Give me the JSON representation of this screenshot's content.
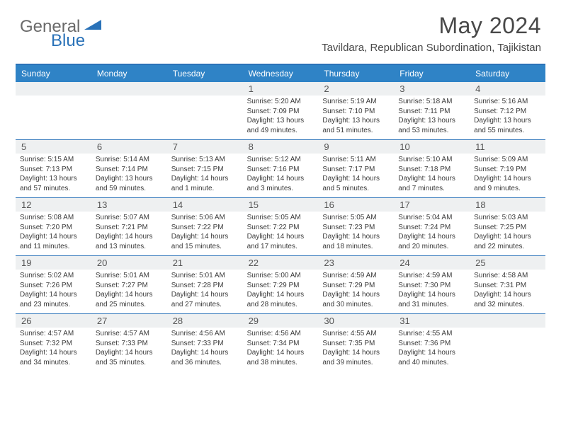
{
  "logo": {
    "text1": "General",
    "text2": "Blue"
  },
  "title": "May 2024",
  "location": "Tavildara, Republican Subordination, Tajikistan",
  "colors": {
    "header_bg": "#2f83c6",
    "border": "#2a72b8",
    "daynum_bg": "#eef0f1",
    "text": "#3a3a3a",
    "title_text": "#484848"
  },
  "day_headers": [
    "Sunday",
    "Monday",
    "Tuesday",
    "Wednesday",
    "Thursday",
    "Friday",
    "Saturday"
  ],
  "weeks": [
    [
      {
        "n": "",
        "sr": "",
        "ss": "",
        "dl": ""
      },
      {
        "n": "",
        "sr": "",
        "ss": "",
        "dl": ""
      },
      {
        "n": "",
        "sr": "",
        "ss": "",
        "dl": ""
      },
      {
        "n": "1",
        "sr": "5:20 AM",
        "ss": "7:09 PM",
        "dl": "13 hours and 49 minutes."
      },
      {
        "n": "2",
        "sr": "5:19 AM",
        "ss": "7:10 PM",
        "dl": "13 hours and 51 minutes."
      },
      {
        "n": "3",
        "sr": "5:18 AM",
        "ss": "7:11 PM",
        "dl": "13 hours and 53 minutes."
      },
      {
        "n": "4",
        "sr": "5:16 AM",
        "ss": "7:12 PM",
        "dl": "13 hours and 55 minutes."
      }
    ],
    [
      {
        "n": "5",
        "sr": "5:15 AM",
        "ss": "7:13 PM",
        "dl": "13 hours and 57 minutes."
      },
      {
        "n": "6",
        "sr": "5:14 AM",
        "ss": "7:14 PM",
        "dl": "13 hours and 59 minutes."
      },
      {
        "n": "7",
        "sr": "5:13 AM",
        "ss": "7:15 PM",
        "dl": "14 hours and 1 minute."
      },
      {
        "n": "8",
        "sr": "5:12 AM",
        "ss": "7:16 PM",
        "dl": "14 hours and 3 minutes."
      },
      {
        "n": "9",
        "sr": "5:11 AM",
        "ss": "7:17 PM",
        "dl": "14 hours and 5 minutes."
      },
      {
        "n": "10",
        "sr": "5:10 AM",
        "ss": "7:18 PM",
        "dl": "14 hours and 7 minutes."
      },
      {
        "n": "11",
        "sr": "5:09 AM",
        "ss": "7:19 PM",
        "dl": "14 hours and 9 minutes."
      }
    ],
    [
      {
        "n": "12",
        "sr": "5:08 AM",
        "ss": "7:20 PM",
        "dl": "14 hours and 11 minutes."
      },
      {
        "n": "13",
        "sr": "5:07 AM",
        "ss": "7:21 PM",
        "dl": "14 hours and 13 minutes."
      },
      {
        "n": "14",
        "sr": "5:06 AM",
        "ss": "7:22 PM",
        "dl": "14 hours and 15 minutes."
      },
      {
        "n": "15",
        "sr": "5:05 AM",
        "ss": "7:22 PM",
        "dl": "14 hours and 17 minutes."
      },
      {
        "n": "16",
        "sr": "5:05 AM",
        "ss": "7:23 PM",
        "dl": "14 hours and 18 minutes."
      },
      {
        "n": "17",
        "sr": "5:04 AM",
        "ss": "7:24 PM",
        "dl": "14 hours and 20 minutes."
      },
      {
        "n": "18",
        "sr": "5:03 AM",
        "ss": "7:25 PM",
        "dl": "14 hours and 22 minutes."
      }
    ],
    [
      {
        "n": "19",
        "sr": "5:02 AM",
        "ss": "7:26 PM",
        "dl": "14 hours and 23 minutes."
      },
      {
        "n": "20",
        "sr": "5:01 AM",
        "ss": "7:27 PM",
        "dl": "14 hours and 25 minutes."
      },
      {
        "n": "21",
        "sr": "5:01 AM",
        "ss": "7:28 PM",
        "dl": "14 hours and 27 minutes."
      },
      {
        "n": "22",
        "sr": "5:00 AM",
        "ss": "7:29 PM",
        "dl": "14 hours and 28 minutes."
      },
      {
        "n": "23",
        "sr": "4:59 AM",
        "ss": "7:29 PM",
        "dl": "14 hours and 30 minutes."
      },
      {
        "n": "24",
        "sr": "4:59 AM",
        "ss": "7:30 PM",
        "dl": "14 hours and 31 minutes."
      },
      {
        "n": "25",
        "sr": "4:58 AM",
        "ss": "7:31 PM",
        "dl": "14 hours and 32 minutes."
      }
    ],
    [
      {
        "n": "26",
        "sr": "4:57 AM",
        "ss": "7:32 PM",
        "dl": "14 hours and 34 minutes."
      },
      {
        "n": "27",
        "sr": "4:57 AM",
        "ss": "7:33 PM",
        "dl": "14 hours and 35 minutes."
      },
      {
        "n": "28",
        "sr": "4:56 AM",
        "ss": "7:33 PM",
        "dl": "14 hours and 36 minutes."
      },
      {
        "n": "29",
        "sr": "4:56 AM",
        "ss": "7:34 PM",
        "dl": "14 hours and 38 minutes."
      },
      {
        "n": "30",
        "sr": "4:55 AM",
        "ss": "7:35 PM",
        "dl": "14 hours and 39 minutes."
      },
      {
        "n": "31",
        "sr": "4:55 AM",
        "ss": "7:36 PM",
        "dl": "14 hours and 40 minutes."
      },
      {
        "n": "",
        "sr": "",
        "ss": "",
        "dl": ""
      }
    ]
  ],
  "labels": {
    "sunrise": "Sunrise:",
    "sunset": "Sunset:",
    "daylight": "Daylight:"
  }
}
